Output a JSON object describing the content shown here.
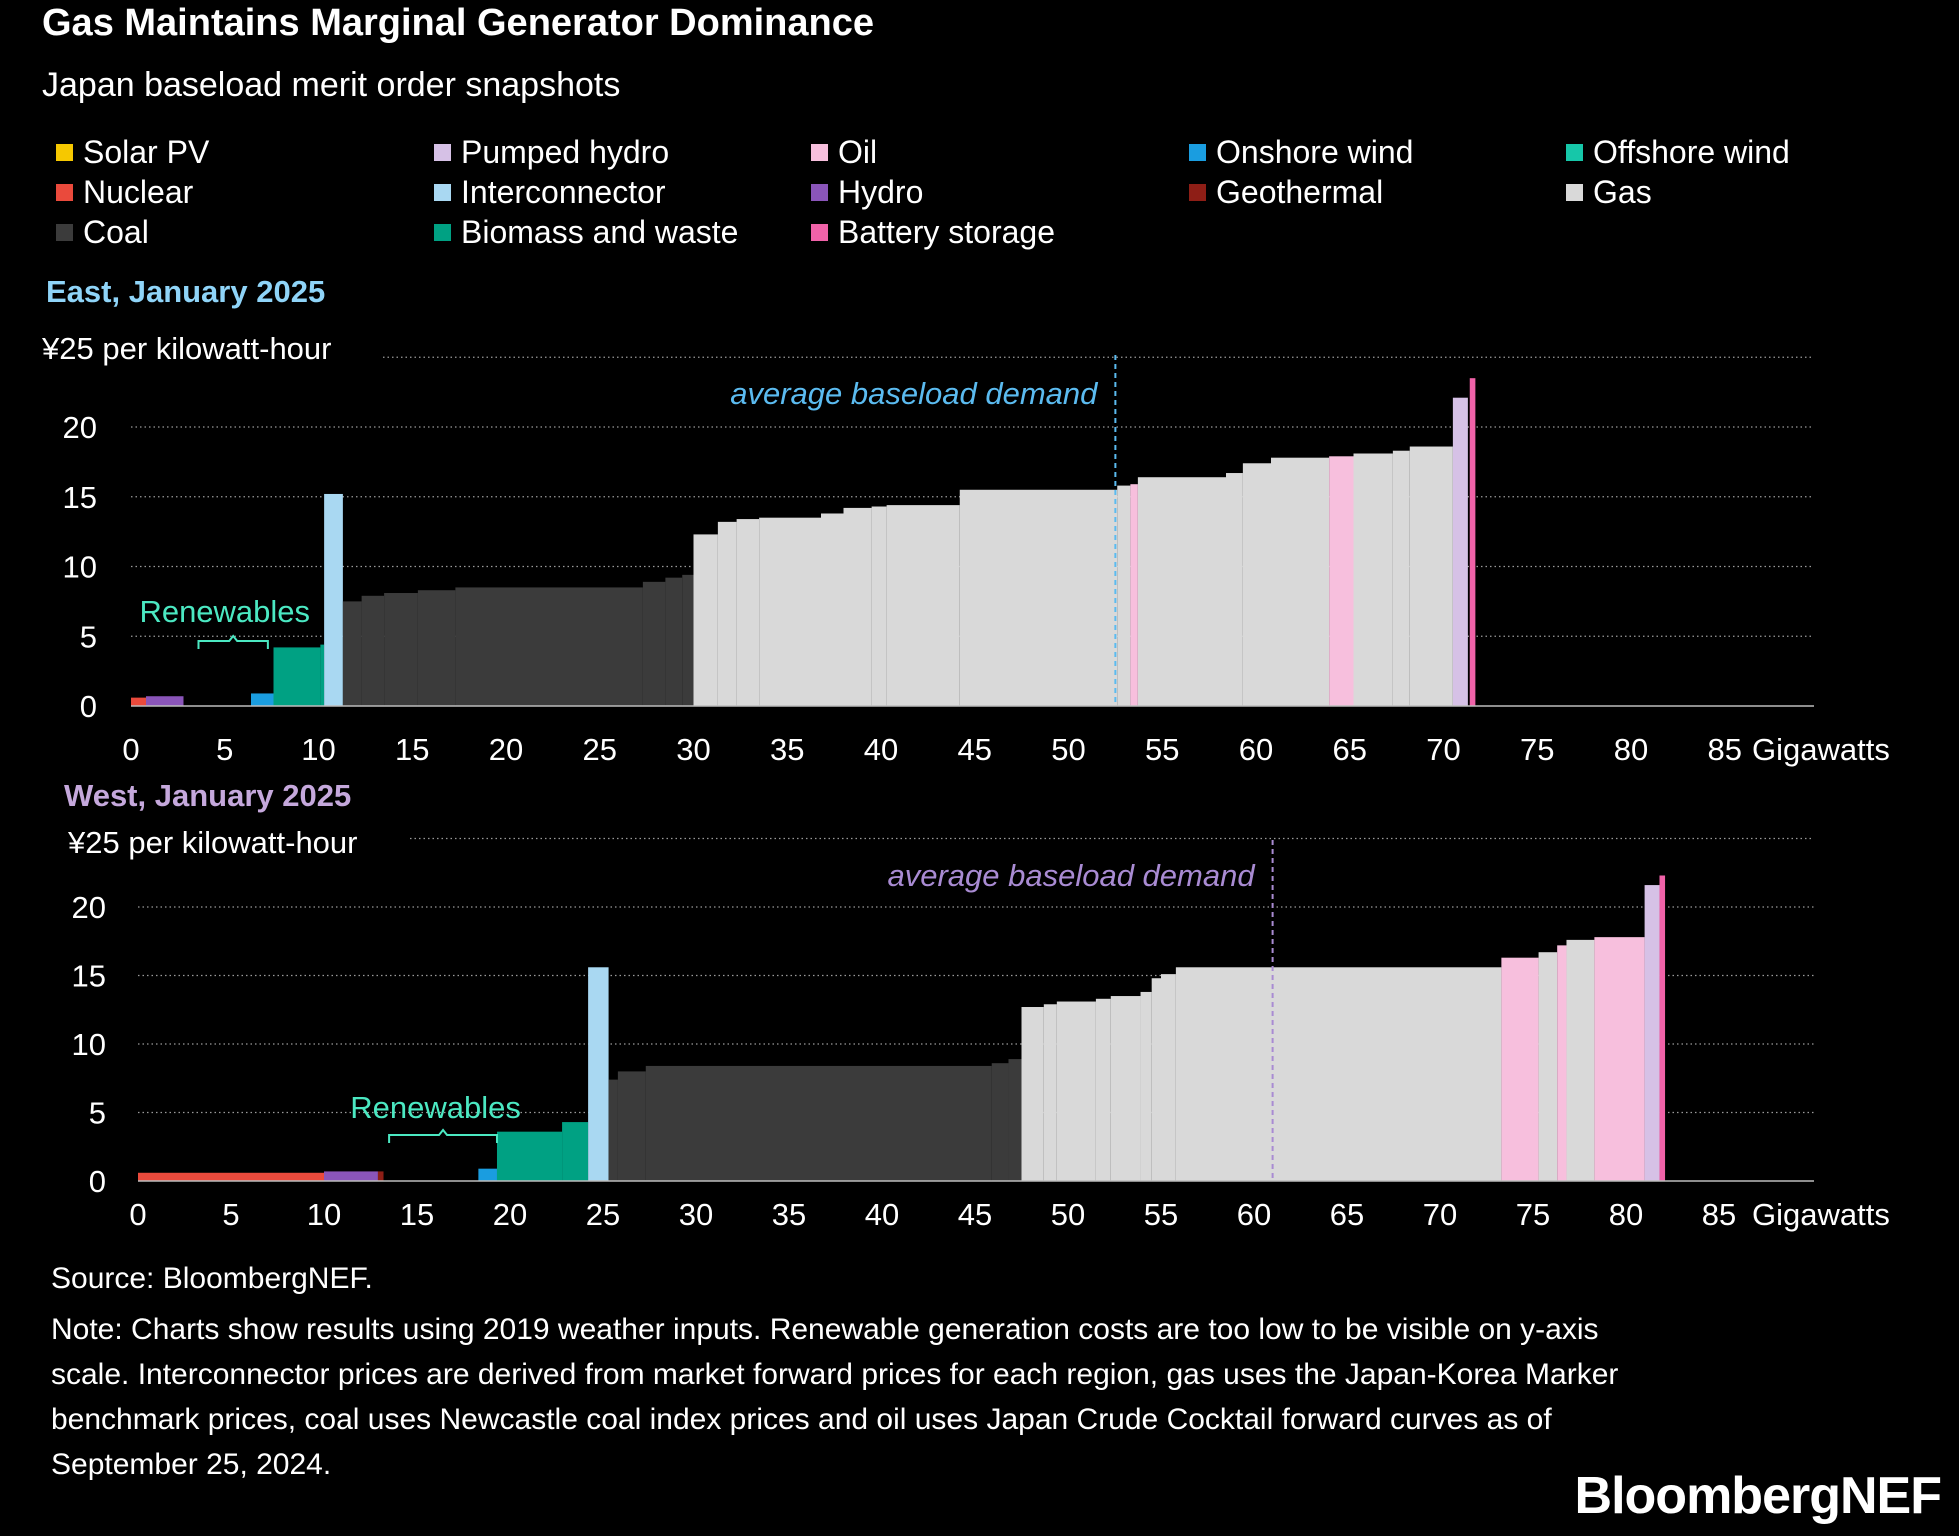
{
  "title": "Gas Maintains Marginal Generator Dominance",
  "subtitle": "Japan baseload merit order snapshots",
  "legend": [
    {
      "label": "Solar PV",
      "color": "#f6c800"
    },
    {
      "label": "Pumped hydro",
      "color": "#d6c1e6"
    },
    {
      "label": "Oil",
      "color": "#f7bfdd"
    },
    {
      "label": "Onshore wind",
      "color": "#1a9de0"
    },
    {
      "label": "Offshore wind",
      "color": "#16c7a9"
    },
    {
      "label": "Nuclear",
      "color": "#ea4a3c"
    },
    {
      "label": "Interconnector",
      "color": "#a9d8f2"
    },
    {
      "label": "Hydro",
      "color": "#8a55b9"
    },
    {
      "label": "Geothermal",
      "color": "#8e1e16"
    },
    {
      "label": "Gas",
      "color": "#d9d9d9"
    },
    {
      "label": "Coal",
      "color": "#3b3b3b"
    },
    {
      "label": "Biomass and waste",
      "color": "#00a183"
    },
    {
      "label": "Battery storage",
      "color": "#f062a8"
    }
  ],
  "chart_data": [
    {
      "type": "bar",
      "subtype": "merit-order step chart",
      "title": "East, January 2025",
      "title_color": "#8fd4f8",
      "ylabel": "¥25 per kilowatt-hour",
      "xlabel": "Gigawatts",
      "ylim": [
        0,
        25
      ],
      "xlim": [
        0,
        90
      ],
      "yticks": [
        "0",
        "5",
        "10",
        "15",
        "20"
      ],
      "xticks": [
        "0",
        "5",
        "10",
        "15",
        "20",
        "25",
        "30",
        "35",
        "40",
        "45",
        "50",
        "55",
        "60",
        "65",
        "70",
        "75",
        "80",
        "85"
      ],
      "annotation": {
        "label": "average baseload demand",
        "x": 52.5,
        "color": "#5bbbf0"
      },
      "renewables": {
        "label": "Renewables",
        "from": 3.6,
        "to": 7.3,
        "label_x": 5,
        "color": "#4be8c2"
      },
      "series": [
        {
          "type": "Nuclear",
          "x0": 0,
          "x1": 0.8,
          "value": 0.6
        },
        {
          "type": "Hydro",
          "x0": 0.8,
          "x1": 2.8,
          "value": 0.7
        },
        {
          "type": "Onshore wind",
          "x0": 6.4,
          "x1": 7.6,
          "value": 0.9
        },
        {
          "type": "Biomass and waste",
          "x0": 7.6,
          "x1": 10.1,
          "value": 4.2
        },
        {
          "type": "Biomass and waste",
          "x0": 10.1,
          "x1": 10.3,
          "value": 4.4
        },
        {
          "type": "Interconnector",
          "x0": 10.3,
          "x1": 11.3,
          "value": 15.2
        },
        {
          "type": "Coal",
          "x0": 11.3,
          "x1": 12.3,
          "value": 7.5
        },
        {
          "type": "Coal",
          "x0": 12.3,
          "x1": 13.5,
          "value": 7.9
        },
        {
          "type": "Coal",
          "x0": 13.5,
          "x1": 15.3,
          "value": 8.1
        },
        {
          "type": "Coal",
          "x0": 15.3,
          "x1": 17.3,
          "value": 8.3
        },
        {
          "type": "Coal",
          "x0": 17.3,
          "x1": 27.3,
          "value": 8.5
        },
        {
          "type": "Coal",
          "x0": 27.3,
          "x1": 28.5,
          "value": 8.9
        },
        {
          "type": "Coal",
          "x0": 28.5,
          "x1": 29.4,
          "value": 9.2
        },
        {
          "type": "Coal",
          "x0": 29.4,
          "x1": 30.0,
          "value": 9.4
        },
        {
          "type": "Gas",
          "x0": 30.0,
          "x1": 31.3,
          "value": 12.3
        },
        {
          "type": "Gas",
          "x0": 31.3,
          "x1": 32.3,
          "value": 13.2
        },
        {
          "type": "Gas",
          "x0": 32.3,
          "x1": 33.5,
          "value": 13.4
        },
        {
          "type": "Gas",
          "x0": 33.5,
          "x1": 36.8,
          "value": 13.5
        },
        {
          "type": "Gas",
          "x0": 36.8,
          "x1": 38.0,
          "value": 13.8
        },
        {
          "type": "Gas",
          "x0": 38.0,
          "x1": 39.5,
          "value": 14.2
        },
        {
          "type": "Gas",
          "x0": 39.5,
          "x1": 40.3,
          "value": 14.3
        },
        {
          "type": "Gas",
          "x0": 40.3,
          "x1": 44.2,
          "value": 14.4
        },
        {
          "type": "Gas",
          "x0": 44.2,
          "x1": 52.6,
          "value": 15.5
        },
        {
          "type": "Gas",
          "x0": 52.6,
          "x1": 53.3,
          "value": 15.8
        },
        {
          "type": "Oil",
          "x0": 53.3,
          "x1": 53.7,
          "value": 15.9
        },
        {
          "type": "Gas",
          "x0": 53.7,
          "x1": 58.4,
          "value": 16.4
        },
        {
          "type": "Gas",
          "x0": 58.4,
          "x1": 59.3,
          "value": 16.7
        },
        {
          "type": "Gas",
          "x0": 59.3,
          "x1": 60.8,
          "value": 17.4
        },
        {
          "type": "Gas",
          "x0": 60.8,
          "x1": 63.9,
          "value": 17.8
        },
        {
          "type": "Oil",
          "x0": 63.9,
          "x1": 65.2,
          "value": 17.9
        },
        {
          "type": "Gas",
          "x0": 65.2,
          "x1": 67.3,
          "value": 18.1
        },
        {
          "type": "Gas",
          "x0": 67.3,
          "x1": 68.2,
          "value": 18.3
        },
        {
          "type": "Gas",
          "x0": 68.2,
          "x1": 70.5,
          "value": 18.6
        },
        {
          "type": "Pumped hydro",
          "x0": 70.5,
          "x1": 71.3,
          "value": 22.1
        },
        {
          "type": "Battery storage",
          "x0": 71.4,
          "x1": 71.7,
          "value": 23.5
        }
      ]
    },
    {
      "type": "bar",
      "subtype": "merit-order step chart",
      "title": "West, January 2025",
      "title_color": "#c5a8dc",
      "ylabel": "¥25 per kilowatt-hour",
      "xlabel": "Gigawatts",
      "ylim": [
        0,
        25
      ],
      "xlim": [
        0,
        90
      ],
      "yticks": [
        "0",
        "5",
        "10",
        "15",
        "20"
      ],
      "xticks": [
        "0",
        "5",
        "10",
        "15",
        "20",
        "25",
        "30",
        "35",
        "40",
        "45",
        "50",
        "55",
        "60",
        "65",
        "70",
        "75",
        "80",
        "85"
      ],
      "annotation": {
        "label": "average baseload demand",
        "x": 61,
        "color": "#a98bd3"
      },
      "renewables": {
        "label": "Renewables",
        "from": 13.5,
        "to": 19.3,
        "label_x": 16,
        "color": "#4be8c2"
      },
      "series": [
        {
          "type": "Nuclear",
          "x0": 0,
          "x1": 10,
          "value": 0.6
        },
        {
          "type": "Hydro",
          "x0": 10,
          "x1": 12.9,
          "value": 0.7
        },
        {
          "type": "Geothermal",
          "x0": 12.9,
          "x1": 13.2,
          "value": 0.7
        },
        {
          "type": "Onshore wind",
          "x0": 18.3,
          "x1": 19.3,
          "value": 0.9
        },
        {
          "type": "Biomass and waste",
          "x0": 19.3,
          "x1": 22.8,
          "value": 3.6
        },
        {
          "type": "Biomass and waste",
          "x0": 22.8,
          "x1": 24.2,
          "value": 4.3
        },
        {
          "type": "Interconnector",
          "x0": 24.2,
          "x1": 25.3,
          "value": 15.6
        },
        {
          "type": "Coal",
          "x0": 25.3,
          "x1": 25.8,
          "value": 7.4
        },
        {
          "type": "Coal",
          "x0": 25.8,
          "x1": 27.3,
          "value": 8.0
        },
        {
          "type": "Coal",
          "x0": 27.3,
          "x1": 45.9,
          "value": 8.4
        },
        {
          "type": "Coal",
          "x0": 45.9,
          "x1": 46.8,
          "value": 8.6
        },
        {
          "type": "Coal",
          "x0": 46.8,
          "x1": 47.5,
          "value": 8.9
        },
        {
          "type": "Gas",
          "x0": 47.5,
          "x1": 48.7,
          "value": 12.7
        },
        {
          "type": "Gas",
          "x0": 48.7,
          "x1": 49.4,
          "value": 12.9
        },
        {
          "type": "Gas",
          "x0": 49.4,
          "x1": 51.5,
          "value": 13.1
        },
        {
          "type": "Gas",
          "x0": 51.5,
          "x1": 52.3,
          "value": 13.3
        },
        {
          "type": "Gas",
          "x0": 52.3,
          "x1": 53.9,
          "value": 13.5
        },
        {
          "type": "Gas",
          "x0": 53.9,
          "x1": 54.5,
          "value": 13.8
        },
        {
          "type": "Gas",
          "x0": 54.5,
          "x1": 55.0,
          "value": 14.8
        },
        {
          "type": "Gas",
          "x0": 55.0,
          "x1": 55.8,
          "value": 15.1
        },
        {
          "type": "Gas",
          "x0": 55.8,
          "x1": 73.3,
          "value": 15.6
        },
        {
          "type": "Oil",
          "x0": 73.3,
          "x1": 75.3,
          "value": 16.3
        },
        {
          "type": "Gas",
          "x0": 75.3,
          "x1": 76.3,
          "value": 16.7
        },
        {
          "type": "Oil",
          "x0": 76.3,
          "x1": 76.8,
          "value": 17.2
        },
        {
          "type": "Gas",
          "x0": 76.8,
          "x1": 78.3,
          "value": 17.6
        },
        {
          "type": "Oil",
          "x0": 78.3,
          "x1": 81.0,
          "value": 17.8
        },
        {
          "type": "Pumped hydro",
          "x0": 81.0,
          "x1": 81.8,
          "value": 21.6
        },
        {
          "type": "Battery storage",
          "x0": 81.8,
          "x1": 82.1,
          "value": 22.3
        }
      ]
    }
  ],
  "source": "Source: BloombergNEF.",
  "note": "Note: Charts show results using 2019 weather inputs. Renewable generation costs are too low to be visible on y-axis scale. Interconnector prices are derived from market forward prices for each region, gas uses the Japan-Korea Marker benchmark prices, coal uses Newcastle coal index prices and oil uses Japan Crude Cocktail forward curves as of September 25, 2024.",
  "brand": "BloombergNEF"
}
